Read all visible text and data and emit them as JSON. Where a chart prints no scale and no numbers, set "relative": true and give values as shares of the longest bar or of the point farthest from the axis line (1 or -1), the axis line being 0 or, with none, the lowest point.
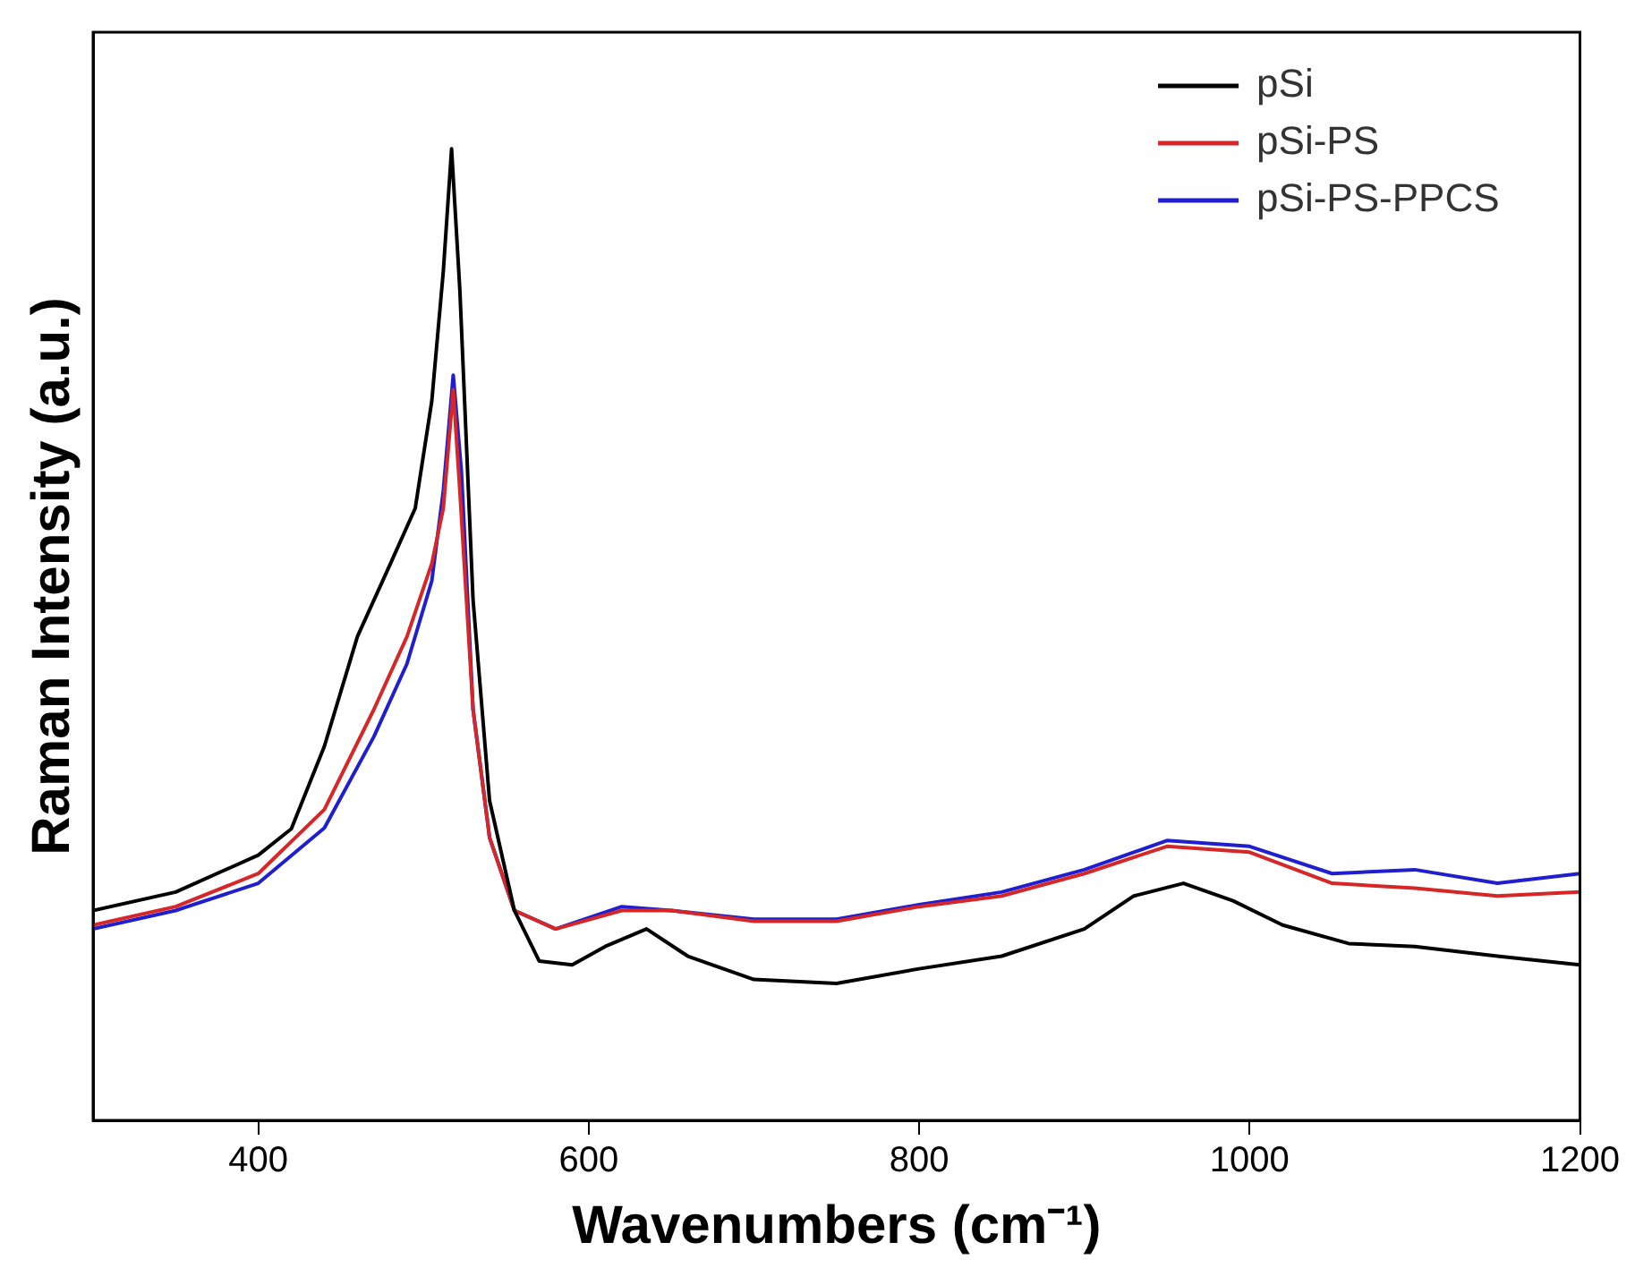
{
  "chart_data": {
    "type": "line",
    "xlabel": "Wavenumbers (cm⁻¹)",
    "ylabel": "Raman Intensity (a.u.)",
    "relative": true,
    "xlim": [
      300,
      1200
    ],
    "xticks": [
      400,
      600,
      800,
      1000,
      1200
    ],
    "tick_labels": "x",
    "legend": "top right",
    "grid": false,
    "marker": "none",
    "line_style": "solid",
    "series": [
      {
        "name": "pSi",
        "color": "#000000",
        "x": [
          300,
          350,
          400,
          420,
          440,
          460,
          480,
          495,
          505,
          512,
          517,
          522,
          530,
          540,
          555,
          570,
          590,
          610,
          635,
          660,
          700,
          750,
          800,
          850,
          900,
          930,
          960,
          990,
          1020,
          1060,
          1100,
          1150,
          1200
        ],
        "values": [
          0.216,
          0.235,
          0.273,
          0.3,
          0.385,
          0.498,
          0.573,
          0.63,
          0.74,
          0.874,
          1,
          0.855,
          0.536,
          0.329,
          0.216,
          0.164,
          0.16,
          0.179,
          0.197,
          0.169,
          0.145,
          0.141,
          0.156,
          0.169,
          0.197,
          0.231,
          0.244,
          0.226,
          0.201,
          0.182,
          0.179,
          0.169,
          0.16
        ]
      },
      {
        "name": "pSi-PS",
        "color": "#d62728",
        "x": [
          300,
          350,
          400,
          440,
          470,
          490,
          505,
          512,
          518,
          522,
          530,
          540,
          555,
          580,
          620,
          650,
          700,
          750,
          800,
          850,
          900,
          950,
          1000,
          1050,
          1100,
          1150,
          1200
        ],
        "values": [
          0.201,
          0.22,
          0.254,
          0.32,
          0.423,
          0.498,
          0.573,
          0.63,
          0.752,
          0.648,
          0.423,
          0.291,
          0.216,
          0.197,
          0.216,
          0.216,
          0.205,
          0.205,
          0.22,
          0.231,
          0.254,
          0.282,
          0.276,
          0.244,
          0.239,
          0.231,
          0.235
        ]
      },
      {
        "name": "pSi-PS-PPCS",
        "color": "#1f1fd0",
        "x": [
          300,
          350,
          400,
          440,
          470,
          490,
          505,
          512,
          518,
          523,
          530,
          540,
          555,
          580,
          620,
          650,
          700,
          750,
          800,
          850,
          900,
          950,
          1000,
          1050,
          1100,
          1150,
          1200
        ],
        "values": [
          0.197,
          0.216,
          0.244,
          0.301,
          0.395,
          0.47,
          0.555,
          0.648,
          0.767,
          0.667,
          0.423,
          0.291,
          0.216,
          0.197,
          0.22,
          0.216,
          0.207,
          0.207,
          0.222,
          0.235,
          0.258,
          0.288,
          0.282,
          0.254,
          0.258,
          0.244,
          0.254
        ]
      }
    ]
  }
}
